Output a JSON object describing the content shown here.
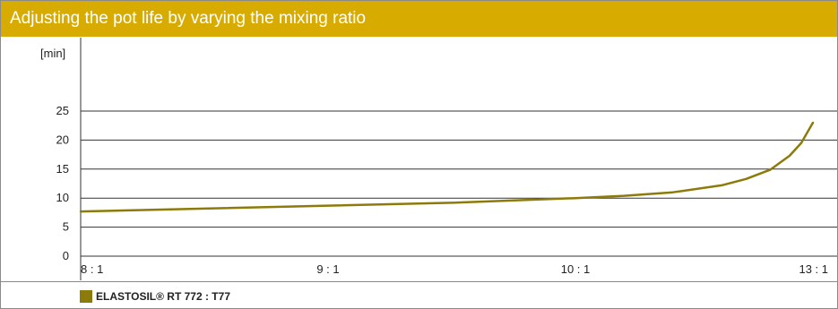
{
  "header": {
    "title": "Adjusting the pot life by varying the mixing ratio"
  },
  "colors": {
    "accent": "#d8ab00",
    "series": "#8c7b0a",
    "grid": "#333333"
  },
  "chart_data": {
    "type": "line",
    "title": "Adjusting the pot life by varying the mixing ratio",
    "ylabel": "[min]",
    "xlabel": "",
    "ylim": [
      0,
      25
    ],
    "yticks": [
      0,
      5,
      10,
      15,
      20,
      25
    ],
    "yticklabels": [
      "0",
      "5",
      "10",
      "15",
      "20",
      "25"
    ],
    "xticklabels": [
      "8 : 1",
      "9 : 1",
      "10 : 1",
      "13 : 1"
    ],
    "grid": "horizontal",
    "series": [
      {
        "name": "ELASTOSIL® RT 772 : T77",
        "x": [
          0,
          0.5,
          1,
          1.5,
          2,
          2.2,
          2.4,
          2.6,
          2.7,
          2.8,
          2.9,
          2.95,
          3
        ],
        "y": [
          7.7,
          8.2,
          8.7,
          9.2,
          10.0,
          10.4,
          11.0,
          12.2,
          13.3,
          14.9,
          17.3,
          19.5,
          23
        ]
      }
    ]
  },
  "legend": {
    "label": "ELASTOSIL® RT 772 : T77"
  }
}
